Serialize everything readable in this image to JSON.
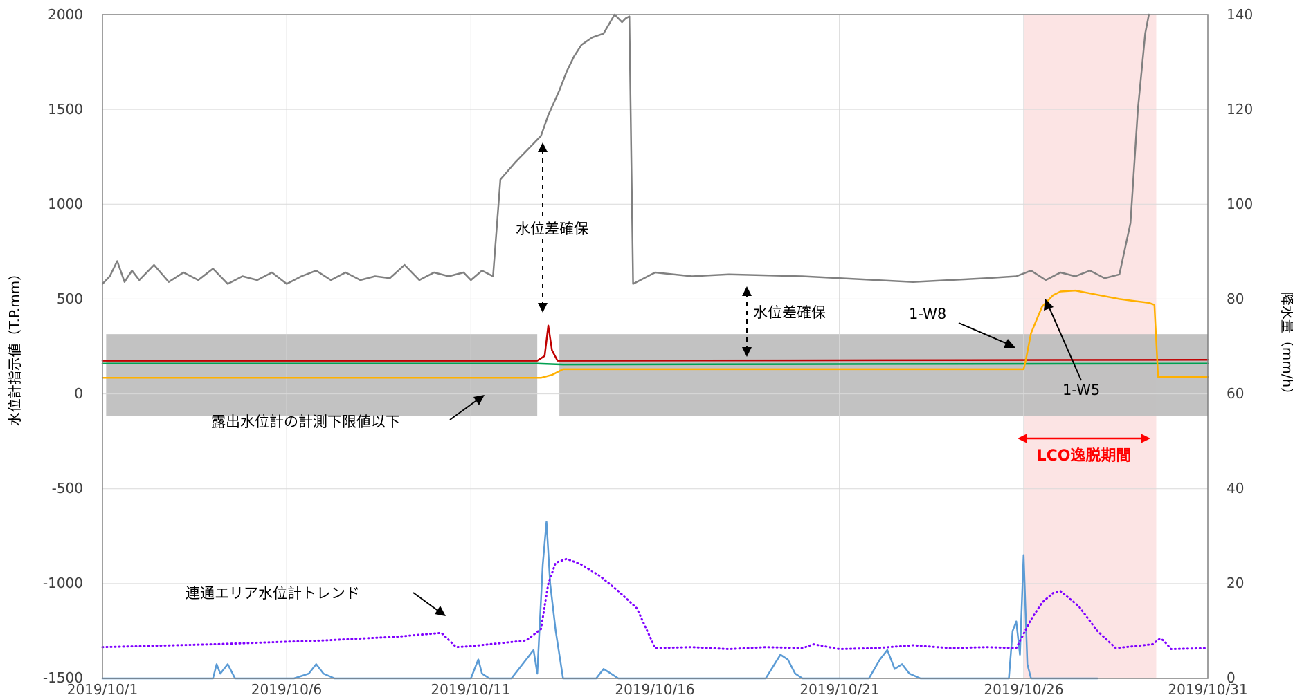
{
  "chart_data": {
    "type": "line",
    "ylabel": "水位計指示値（T.P.mm）",
    "y2label": "降水量（mm/h）",
    "ylim": [
      -1500,
      2000
    ],
    "y2lim": [
      0,
      140
    ],
    "xlim": [
      "2019/10/1",
      "2019/10/31"
    ],
    "x_ticks": [
      "2019/10/1",
      "2019/10/6",
      "2019/10/11",
      "2019/10/16",
      "2019/10/21",
      "2019/10/26",
      "2019/10/31"
    ],
    "y_ticks": [
      2000,
      1500,
      1000,
      500,
      0,
      -500,
      -1000,
      -1500
    ],
    "y2_ticks": [
      140,
      120,
      100,
      80,
      60,
      40,
      20,
      0
    ],
    "grid": true,
    "lco_period": {
      "start_day": 26.0,
      "end_day": 29.6,
      "color": "#fce4e4",
      "label": "LCO逸脱期間"
    },
    "below_limit_bands": {
      "color": "#bfbfbf",
      "label": "露出水位計の計測下限値以下",
      "lower": -115,
      "upper": 315,
      "ranges": [
        [
          1.1,
          12.8
        ],
        [
          13.4,
          31.0
        ]
      ]
    },
    "annotations": {
      "diff1": "水位差確保",
      "diff2": "水位差確保",
      "w8": "1-W8",
      "w5": "1-W5",
      "trend": "連通エリア水位計トレンド"
    },
    "series": [
      {
        "color": "#808080",
        "axis": "left",
        "style": "solid",
        "x": [
          1.0,
          1.2,
          1.4,
          1.6,
          1.8,
          2.0,
          2.4,
          2.8,
          3.2,
          3.6,
          4.0,
          4.4,
          4.8,
          5.2,
          5.6,
          6.0,
          6.4,
          6.8,
          7.2,
          7.6,
          8.0,
          8.4,
          8.8,
          9.2,
          9.6,
          10.0,
          10.4,
          10.8,
          11.0,
          11.3,
          11.6,
          11.8,
          12.2,
          12.6,
          12.9,
          13.1,
          13.4,
          13.6,
          13.8,
          14.0,
          14.3,
          14.6,
          14.9,
          15.1,
          15.2,
          15.3,
          15.4,
          16.0,
          17.0,
          18.0,
          19.0,
          20.0,
          21.0,
          22.0,
          23.0,
          24.0,
          25.0,
          25.8,
          26.2,
          26.6,
          27.0,
          27.4,
          27.8,
          28.2,
          28.6,
          28.9,
          29.1,
          29.3,
          29.4
        ],
        "values": [
          580,
          620,
          700,
          590,
          650,
          600,
          680,
          590,
          640,
          600,
          660,
          580,
          620,
          600,
          640,
          580,
          620,
          650,
          600,
          640,
          600,
          620,
          610,
          680,
          600,
          640,
          620,
          640,
          600,
          650,
          620,
          1130,
          1220,
          1300,
          1360,
          1470,
          1600,
          1700,
          1780,
          1840,
          1880,
          1900,
          2000,
          1960,
          1980,
          1990,
          580,
          640,
          620,
          630,
          625,
          620,
          610,
          600,
          590,
          600,
          610,
          620,
          650,
          600,
          640,
          620,
          650,
          610,
          630,
          900,
          1500,
          1900,
          2000
        ]
      },
      {
        "color": "#c00000",
        "axis": "left",
        "style": "solid",
        "x": [
          1.0,
          12.8,
          13.0,
          13.1,
          13.2,
          13.35,
          13.6,
          31.0
        ],
        "values": [
          175,
          175,
          200,
          360,
          230,
          175,
          175,
          180
        ]
      },
      {
        "color": "#00a050",
        "axis": "left",
        "style": "solid",
        "x": [
          1.0,
          12.8,
          13.5,
          31.0
        ],
        "values": [
          160,
          160,
          155,
          160
        ]
      },
      {
        "color": "#ffb000",
        "axis": "left",
        "style": "solid",
        "x": [
          1.0,
          12.9,
          13.2,
          13.5,
          26.0,
          26.05,
          26.2,
          26.5,
          26.8,
          27.0,
          27.4,
          27.8,
          28.2,
          28.6,
          29.0,
          29.4,
          29.55,
          29.65,
          31.0
        ],
        "values": [
          85,
          85,
          100,
          130,
          130,
          170,
          320,
          460,
          520,
          540,
          545,
          530,
          515,
          500,
          490,
          480,
          470,
          90,
          90
        ]
      },
      {
        "color": "#5b9bd5",
        "axis": "right",
        "style": "solid",
        "x": [
          1.0,
          3.6,
          4.0,
          4.1,
          4.2,
          4.4,
          4.6,
          4.7,
          6.2,
          6.6,
          6.8,
          7.0,
          7.3,
          11.0,
          11.2,
          11.3,
          11.5,
          12.1,
          12.5,
          12.7,
          12.8,
          12.95,
          13.05,
          13.15,
          13.3,
          13.5,
          13.7,
          14.4,
          14.6,
          14.8,
          15.0,
          19.0,
          19.4,
          19.6,
          19.8,
          20.0,
          20.4,
          21.8,
          22.1,
          22.3,
          22.5,
          22.7,
          22.9,
          23.2,
          23.6,
          25.6,
          25.7,
          25.8,
          25.9,
          26.0,
          26.1,
          26.2,
          28.0
        ],
        "values": [
          0,
          0,
          0,
          3,
          1,
          3,
          0,
          0,
          0,
          1,
          3,
          1,
          0,
          0,
          4,
          1,
          0,
          0,
          4,
          6,
          1,
          24,
          33,
          20,
          10,
          0,
          0,
          0,
          2,
          1,
          0,
          0,
          5,
          4,
          1,
          0,
          0,
          0,
          4,
          6,
          2,
          3,
          1,
          0,
          0,
          0,
          10,
          12,
          5,
          26,
          3,
          0,
          0
        ]
      },
      {
        "color": "#7f00ff",
        "axis": "left",
        "style": "dotted",
        "x": [
          1.0,
          4.0,
          7.0,
          9.0,
          10.2,
          10.6,
          11.0,
          12.5,
          12.9,
          13.1,
          13.3,
          13.6,
          14.0,
          14.5,
          15.0,
          15.5,
          16.0,
          17.0,
          18.0,
          19.0,
          20.0,
          20.3,
          21.0,
          22.0,
          23.0,
          24.0,
          25.0,
          25.8,
          26.2,
          26.5,
          26.8,
          27.0,
          27.5,
          28.0,
          28.5,
          29.0,
          29.5,
          29.7,
          29.8,
          30.0,
          31.0
        ],
        "values": [
          -1335,
          -1320,
          -1300,
          -1280,
          -1260,
          -1335,
          -1330,
          -1300,
          -1240,
          -1000,
          -890,
          -870,
          -900,
          -960,
          -1040,
          -1130,
          -1340,
          -1335,
          -1345,
          -1335,
          -1340,
          -1320,
          -1345,
          -1340,
          -1325,
          -1340,
          -1335,
          -1340,
          -1190,
          -1100,
          -1050,
          -1040,
          -1120,
          -1250,
          -1340,
          -1330,
          -1320,
          -1290,
          -1300,
          -1345,
          -1340
        ]
      }
    ]
  }
}
